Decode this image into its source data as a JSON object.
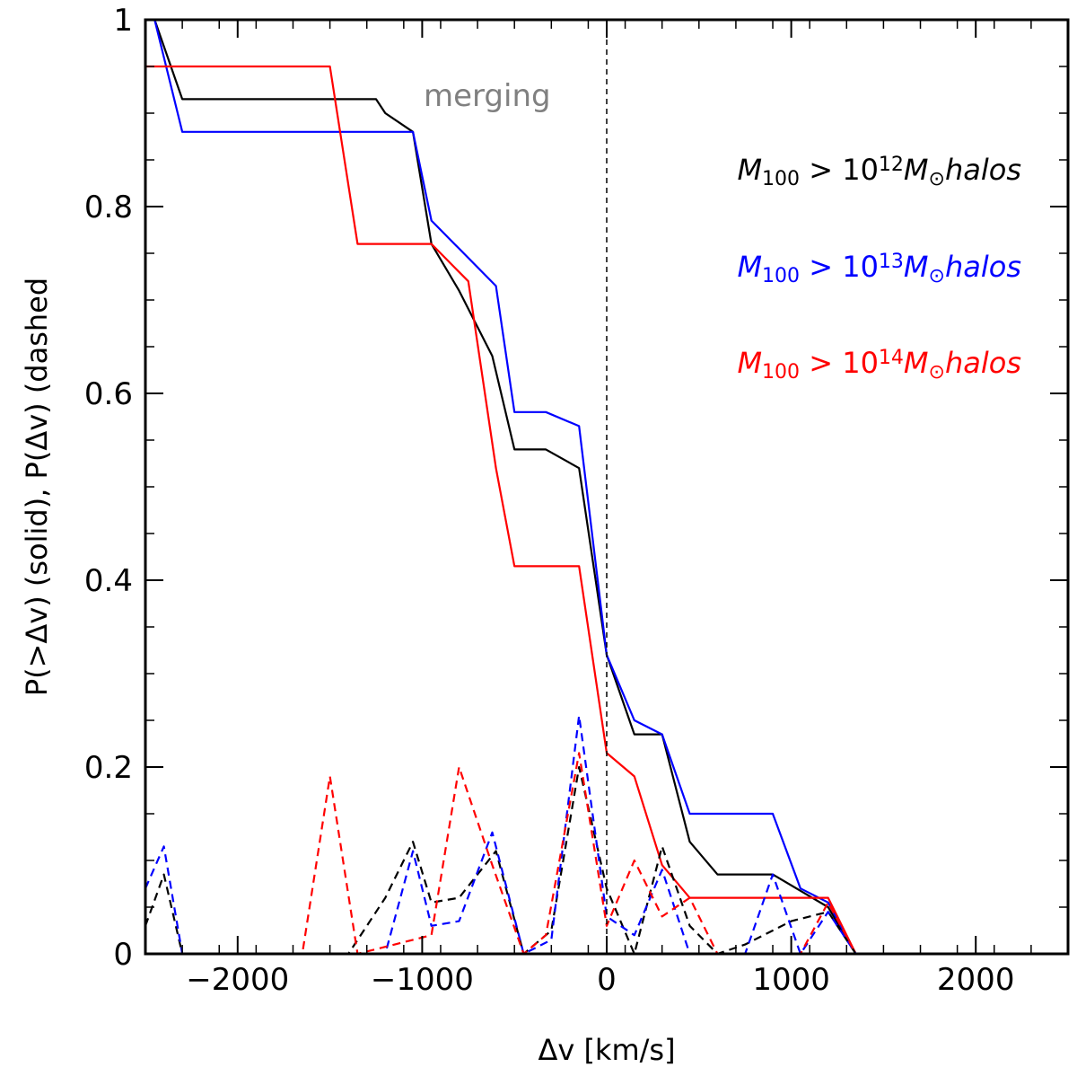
{
  "chart_data": {
    "type": "line",
    "xlabel": "Δv [km/s]",
    "ylabel": "P(>Δv) (solid), P(Δv) (dashed",
    "xlim": [
      -2500,
      2500
    ],
    "ylim": [
      0,
      1
    ],
    "x_ticks": [
      -2000,
      -1000,
      0,
      1000,
      2000
    ],
    "x_tick_labels": [
      "−2000",
      "−1000",
      "0",
      "1000",
      "2000"
    ],
    "y_ticks": [
      0,
      0.2,
      0.4,
      0.6,
      0.8,
      1
    ],
    "y_tick_labels": [
      "0",
      "0.2",
      "0.4",
      "0.6",
      "0.8",
      "1"
    ],
    "annotation": "merging",
    "vline_x": 0,
    "legend": [
      {
        "prefix": "M",
        "sub": "100",
        "mid": " > 10",
        "sup": "12",
        "unit": "M",
        "unit_sub": "⊙",
        "suffix": "halos",
        "color": "#000000"
      },
      {
        "prefix": "M",
        "sub": "100",
        "mid": " > 10",
        "sup": "13",
        "unit": "M",
        "unit_sub": "⊙",
        "suffix": "halos",
        "color": "#0000ff"
      },
      {
        "prefix": "M",
        "sub": "100",
        "mid": " > 10",
        "sup": "14",
        "unit": "M",
        "unit_sub": "⊙",
        "suffix": "halos",
        "color": "#ff0000"
      }
    ],
    "series": [
      {
        "color": "#000000",
        "style": "solid",
        "x": [
          -2500,
          -2450,
          -2300,
          -1250,
          -1200,
          -1050,
          -950,
          -800,
          -620,
          -500,
          -330,
          -150,
          0,
          150,
          300,
          450,
          600,
          900,
          1200,
          1350,
          2500
        ],
        "y": [
          1,
          1,
          0.915,
          0.915,
          0.9,
          0.88,
          0.76,
          0.71,
          0.64,
          0.54,
          0.54,
          0.52,
          0.32,
          0.235,
          0.235,
          0.12,
          0.085,
          0.085,
          0.05,
          0,
          0
        ]
      },
      {
        "color": "#0000ff",
        "style": "solid",
        "x": [
          -2500,
          -2450,
          -2300,
          -1050,
          -950,
          -600,
          -500,
          -330,
          -150,
          0,
          150,
          300,
          450,
          600,
          900,
          1050,
          1200,
          1350,
          2500
        ],
        "y": [
          1,
          1,
          0.88,
          0.88,
          0.785,
          0.715,
          0.58,
          0.58,
          0.565,
          0.32,
          0.25,
          0.235,
          0.15,
          0.15,
          0.15,
          0.07,
          0.055,
          0,
          0
        ]
      },
      {
        "color": "#ff0000",
        "style": "solid",
        "x": [
          -2500,
          -1500,
          -1350,
          -1050,
          -950,
          -800,
          -750,
          -600,
          -500,
          -330,
          -150,
          0,
          150,
          300,
          450,
          600,
          900,
          1050,
          1200,
          1350,
          2500
        ],
        "y": [
          0.95,
          0.95,
          0.76,
          0.76,
          0.76,
          0.73,
          0.72,
          0.52,
          0.415,
          0.415,
          0.415,
          0.215,
          0.19,
          0.095,
          0.06,
          0.06,
          0.06,
          0.06,
          0.06,
          0,
          0
        ]
      },
      {
        "color": "#000000",
        "style": "dashed",
        "x": [
          -2500,
          -2400,
          -2300,
          -1400,
          -1200,
          -1050,
          -950,
          -800,
          -600,
          -450,
          -300,
          -150,
          0,
          150,
          300,
          450,
          600,
          750,
          1000,
          1200,
          1350,
          2500
        ],
        "y": [
          0.03,
          0.085,
          0,
          0,
          0.06,
          0.12,
          0.055,
          0.06,
          0.11,
          0,
          0.025,
          0.2,
          0.07,
          0,
          0.115,
          0.03,
          0,
          0.01,
          0.035,
          0.045,
          0,
          0
        ]
      },
      {
        "color": "#0000ff",
        "style": "dashed",
        "x": [
          -2500,
          -2400,
          -2300,
          -1200,
          -1050,
          -950,
          -800,
          -620,
          -450,
          -300,
          -150,
          0,
          150,
          300,
          450,
          600,
          750,
          900,
          1050,
          1200,
          1350,
          2500
        ],
        "y": [
          0.07,
          0.115,
          0,
          0,
          0.11,
          0.03,
          0.035,
          0.13,
          0,
          0.015,
          0.255,
          0.04,
          0.02,
          0.09,
          0,
          0,
          0,
          0.085,
          0,
          0.045,
          0,
          0
        ]
      },
      {
        "color": "#ff0000",
        "style": "dashed",
        "x": [
          -2500,
          -1650,
          -1500,
          -1350,
          -950,
          -800,
          -620,
          -450,
          -330,
          -150,
          0,
          150,
          300,
          450,
          600,
          750,
          1050,
          1200,
          1350,
          2500
        ],
        "y": [
          0,
          0,
          0.19,
          0,
          0.02,
          0.2,
          0.095,
          0,
          0.02,
          0.215,
          0.03,
          0.1,
          0.04,
          0.06,
          0,
          0,
          0,
          0.055,
          0,
          0
        ]
      }
    ]
  }
}
